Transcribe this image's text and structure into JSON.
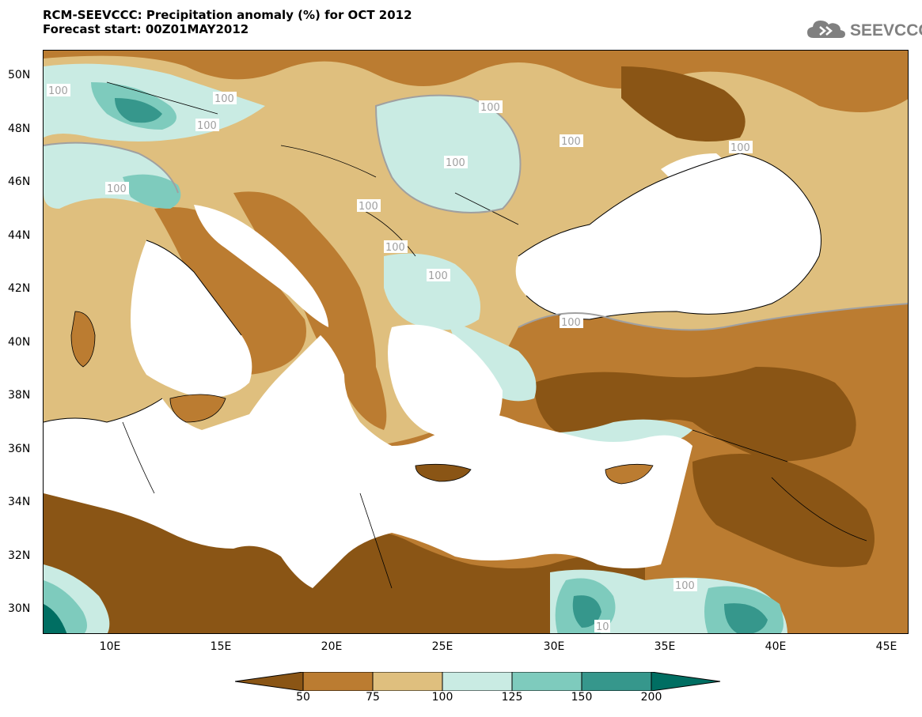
{
  "title": {
    "line1": "RCM-SEEVCCC: Precipitation anomaly (%) for OCT 2012",
    "line2": "Forecast start: 00Z01MAY2012"
  },
  "logo": {
    "text": "SEEVCCC",
    "icon": "cloud-icon"
  },
  "axes": {
    "y_ticks": [
      "50N",
      "48N",
      "46N",
      "44N",
      "42N",
      "40N",
      "38N",
      "36N",
      "34N",
      "32N",
      "30N"
    ],
    "x_ticks": [
      "10E",
      "15E",
      "20E",
      "25E",
      "30E",
      "35E",
      "40E",
      "45E"
    ]
  },
  "contour_labels": [
    "100",
    "100",
    "100",
    "100",
    "100",
    "100",
    "100",
    "100",
    "100",
    "100",
    "100",
    "100",
    "100",
    "10"
  ],
  "colorbar": {
    "labels": [
      "50",
      "75",
      "100",
      "125",
      "150",
      "200"
    ],
    "colors": [
      "#8a5515",
      "#bb7c31",
      "#dfbf7e",
      "#c9ebe3",
      "#7ecbbd",
      "#36978c",
      "#006e62"
    ]
  },
  "palette": {
    "sea": "#ffffff",
    "dark_brown": "#8a5515",
    "brown": "#bb7c31",
    "tan": "#dfbf7e",
    "light_teal": "#c9ebe3",
    "teal": "#7ecbbd",
    "dark_teal": "#36978c",
    "deep_teal": "#006e62",
    "contour_line": "#a0a0a0"
  }
}
